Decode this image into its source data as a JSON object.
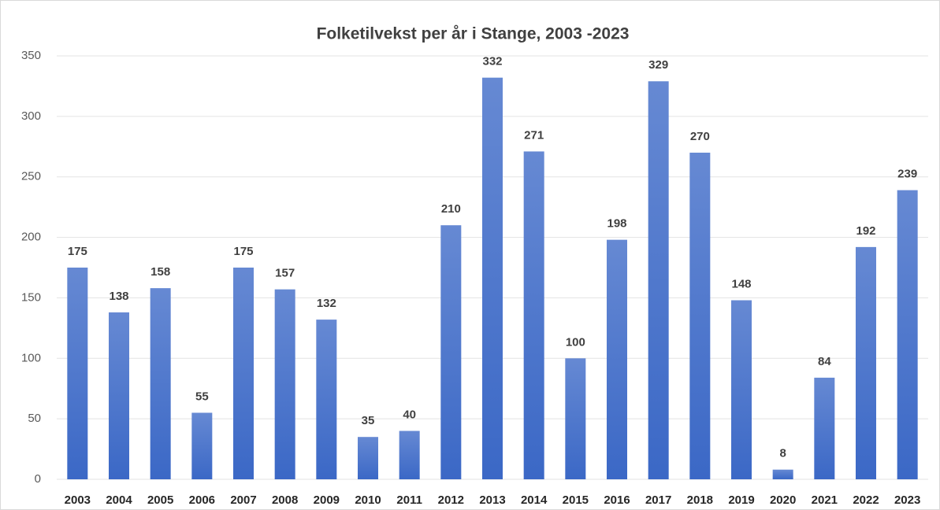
{
  "chart_data": {
    "type": "bar",
    "title": "Folketilvekst per år i Stange, 2003 -2023",
    "categories": [
      "2003",
      "2004",
      "2005",
      "2006",
      "2007",
      "2008",
      "2009",
      "2010",
      "2011",
      "2012",
      "2013",
      "2014",
      "2015",
      "2016",
      "2017",
      "2018",
      "2019",
      "2020",
      "2021",
      "2022",
      "2023"
    ],
    "values": [
      175,
      138,
      158,
      55,
      175,
      157,
      132,
      35,
      40,
      210,
      332,
      271,
      100,
      198,
      329,
      270,
      148,
      8,
      84,
      192,
      239
    ],
    "color": "#3b68c6",
    "ylim": [
      0,
      350
    ],
    "yticks": [
      0,
      50,
      100,
      150,
      200,
      250,
      300,
      350
    ],
    "grid": true
  }
}
